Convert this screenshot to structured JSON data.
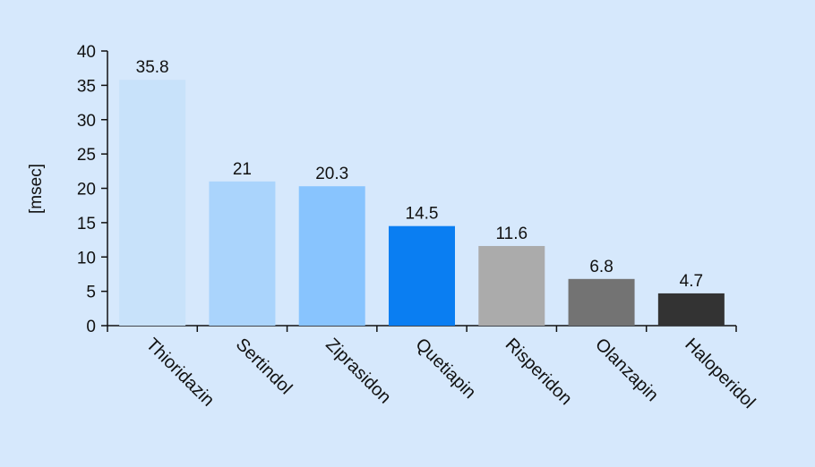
{
  "chart_data": {
    "type": "bar",
    "title": "",
    "xlabel": "",
    "ylabel": "[msec]",
    "categories": [
      "Thioridazin",
      "Sertindol",
      "Ziprasidon",
      "Quetiapin",
      "Risperidon",
      "Olanzapin",
      "Haloperidol"
    ],
    "values": [
      35.8,
      21,
      20.3,
      14.5,
      11.6,
      6.8,
      4.7
    ],
    "data_labels": [
      "35.8",
      "21",
      "20.3",
      "14.5",
      "11.6",
      "6.8",
      "4.7"
    ],
    "bar_colors": [
      "#c8e2fa",
      "#aad4fc",
      "#88c4fe",
      "#0a7ef2",
      "#ababab",
      "#737373",
      "#333333"
    ],
    "ylim": [
      0,
      40
    ],
    "yticks": [
      0,
      5,
      10,
      15,
      20,
      25,
      30,
      35,
      40
    ],
    "grid": false,
    "legend": "none"
  }
}
